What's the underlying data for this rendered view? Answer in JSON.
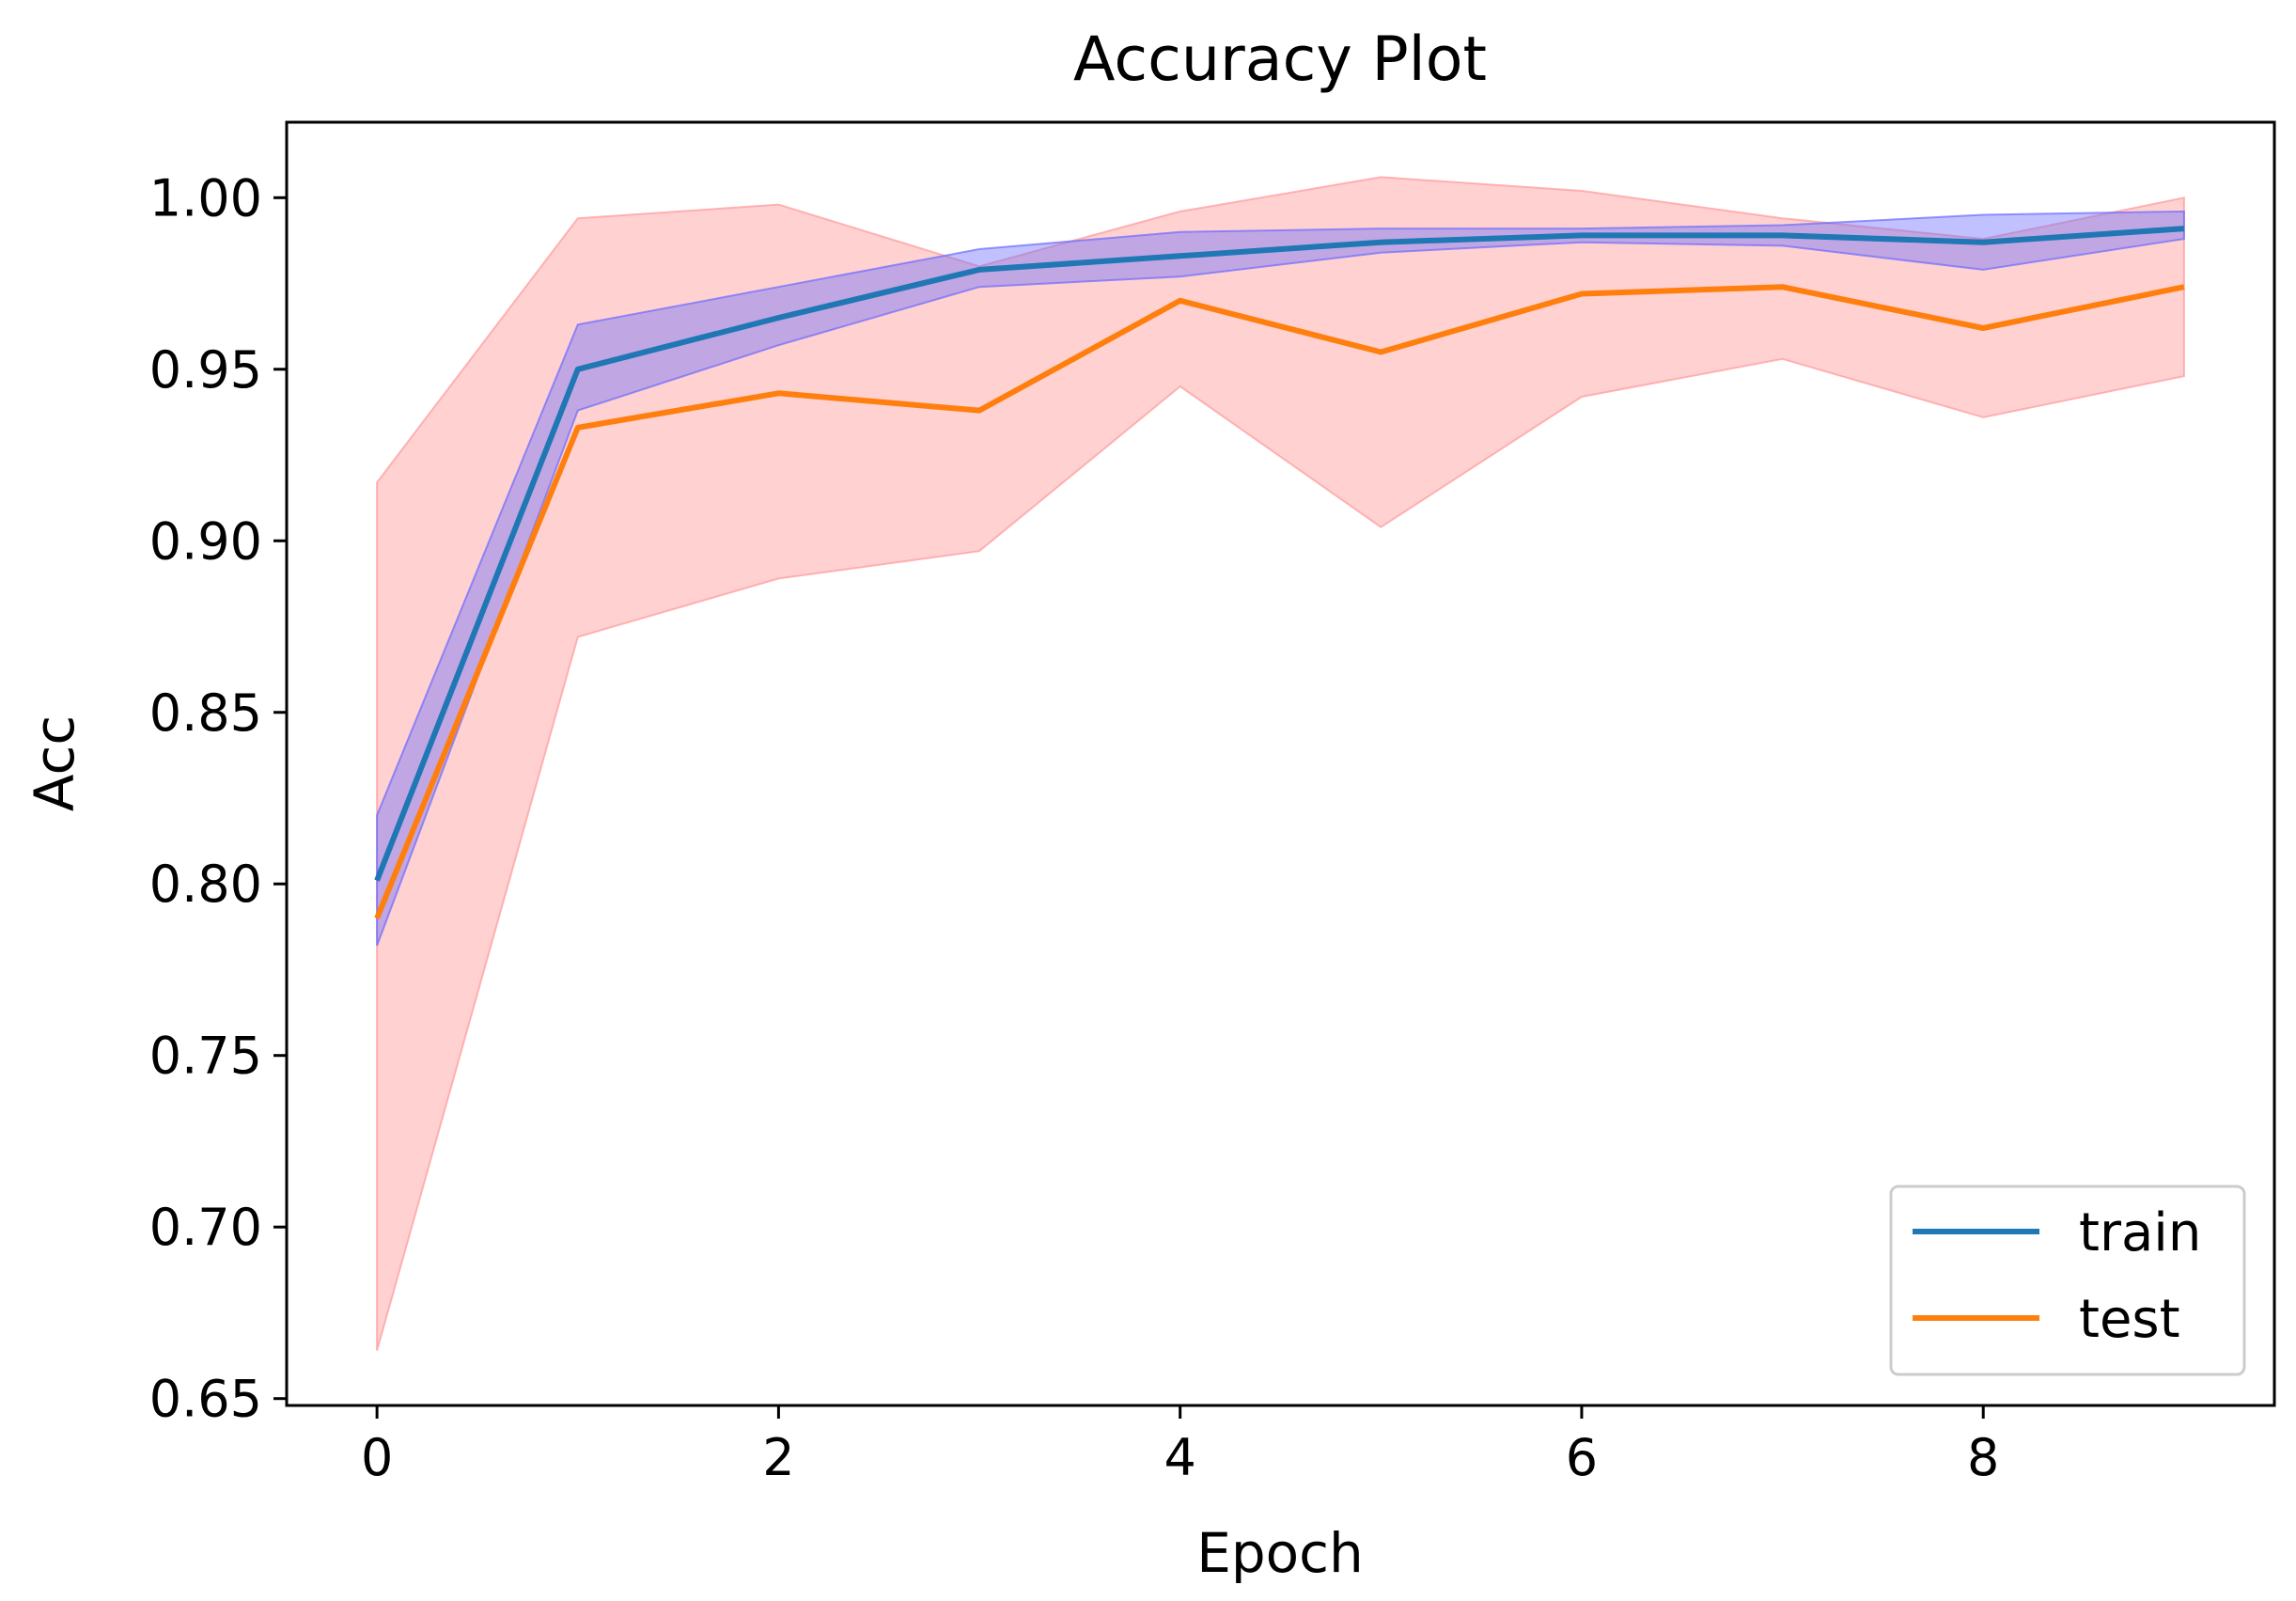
{
  "chart_data": {
    "type": "line",
    "title": "Accuracy Plot",
    "xlabel": "Epoch",
    "ylabel": "Acc",
    "xlim": [
      -0.45,
      9.45
    ],
    "ylim": [
      0.648,
      1.022
    ],
    "x_ticks": [
      0,
      2,
      4,
      6,
      8
    ],
    "x_tick_labels": [
      "0",
      "2",
      "4",
      "6",
      "8"
    ],
    "y_ticks": [
      0.65,
      0.7,
      0.75,
      0.8,
      0.85,
      0.9,
      0.95,
      1.0
    ],
    "y_tick_labels": [
      "0.65",
      "0.70",
      "0.75",
      "0.80",
      "0.85",
      "0.90",
      "0.95",
      "1.00"
    ],
    "grid": false,
    "legend_position": "lower-right",
    "x": [
      0,
      1,
      2,
      3,
      4,
      5,
      6,
      7,
      8,
      9
    ],
    "series": [
      {
        "name": "train",
        "color": "#1f77b4",
        "band_color": "#6b6bff",
        "values": [
          0.801,
          0.95,
          0.965,
          0.979,
          0.983,
          0.987,
          0.989,
          0.989,
          0.987,
          0.991
        ],
        "upper": [
          0.82,
          0.963,
          0.974,
          0.985,
          0.99,
          0.991,
          0.991,
          0.992,
          0.995,
          0.996
        ],
        "lower": [
          0.782,
          0.938,
          0.957,
          0.974,
          0.977,
          0.984,
          0.987,
          0.986,
          0.979,
          0.988
        ]
      },
      {
        "name": "test",
        "color": "#ff7f0e",
        "band_color": "#ff9999",
        "values": [
          0.79,
          0.933,
          0.943,
          0.938,
          0.97,
          0.955,
          0.972,
          0.974,
          0.962,
          0.974
        ],
        "upper": [
          0.917,
          0.994,
          0.998,
          0.98,
          0.996,
          1.006,
          1.002,
          0.994,
          0.988,
          1.0
        ],
        "lower": [
          0.664,
          0.872,
          0.889,
          0.897,
          0.945,
          0.904,
          0.942,
          0.953,
          0.936,
          0.948
        ]
      }
    ]
  }
}
